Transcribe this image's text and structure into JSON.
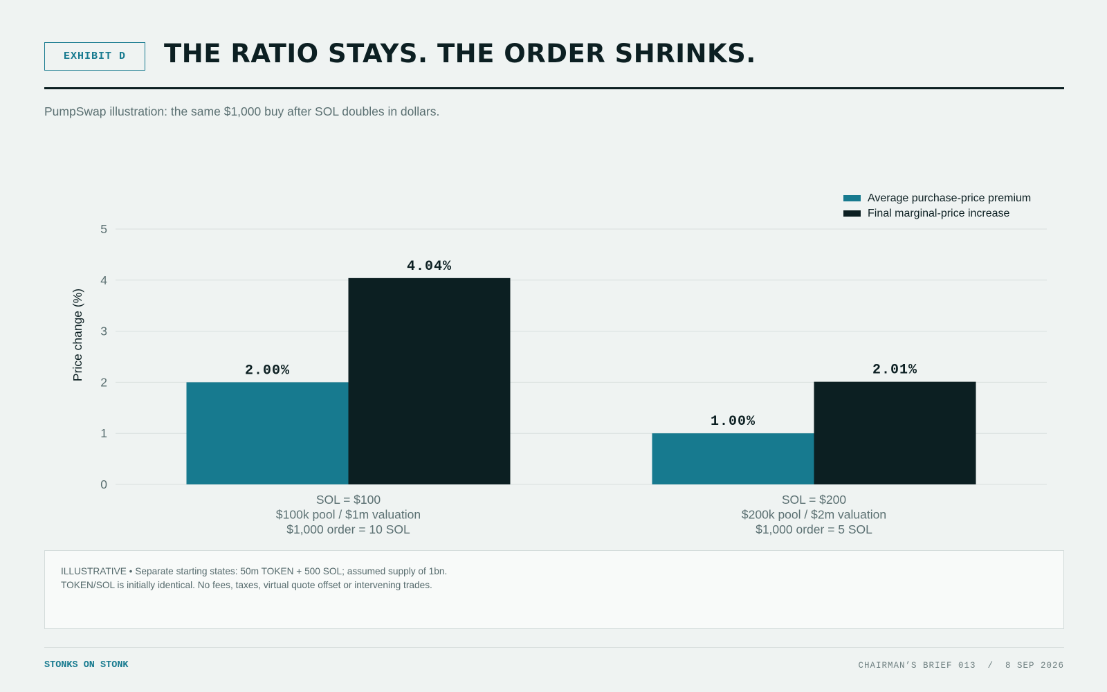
{
  "header": {
    "exhibit": "EXHIBIT D",
    "title": "THE RATIO STAYS. THE ORDER SHRINKS.",
    "subtitle": "PumpSwap illustration: the same $1,000 buy after SOL doubles in dollars."
  },
  "chart_data": {
    "type": "bar",
    "categories": [
      [
        "SOL = $100",
        "$100k pool / $1m valuation",
        "$1,000 order = 10 SOL"
      ],
      [
        "SOL = $200",
        "$200k pool / $2m valuation",
        "$1,000 order = 5 SOL"
      ]
    ],
    "series": [
      {
        "name": "Average purchase-price premium",
        "values": [
          2.0,
          1.0
        ],
        "labels": [
          "2.00%",
          "1.00%"
        ],
        "color": "#177a8f"
      },
      {
        "name": "Final marginal-price increase",
        "values": [
          4.04,
          2.01
        ],
        "labels": [
          "4.04%",
          "2.01%"
        ],
        "color": "#0c1f22"
      }
    ],
    "ylabel": "Price change (%)",
    "ylim": [
      0,
      5
    ],
    "yticks": [
      0,
      1,
      2,
      3,
      4,
      5
    ],
    "grid": true,
    "legend": "top-right"
  },
  "note": {
    "lines": [
      "ILLUSTRATIVE • Separate starting states: 50m TOKEN + 500 SOL; assumed supply of 1bn.",
      "TOKEN/SOL is initially identical. No fees, taxes, virtual quote offset or intervening trades."
    ]
  },
  "footer": {
    "brand": "STONKS ON STONK",
    "meta": "CHAIRMAN’S BRIEF 013  /  8 SEP 2026"
  }
}
